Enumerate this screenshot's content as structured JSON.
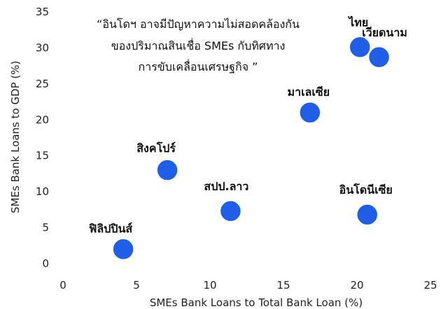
{
  "chart_data": {
    "type": "scatter",
    "xlabel": "SMEs Bank Loans to Total Bank Loan (%)",
    "ylabel": "SMEs Bank Loans to GDP (%)",
    "xlim": [
      0,
      25
    ],
    "ylim": [
      0,
      35
    ],
    "x_ticks": [
      0,
      5,
      10,
      15,
      20,
      25
    ],
    "y_ticks": [
      0,
      5,
      10,
      15,
      20,
      25,
      30,
      35
    ],
    "grid": false,
    "marker_color": "#1f5fe8",
    "points": [
      {
        "label": "ไทย",
        "x": 20.2,
        "y": 30.1
      },
      {
        "label": "เวียดนาม",
        "x": 21.5,
        "y": 28.7
      },
      {
        "label": "มาเลเซีย",
        "x": 16.8,
        "y": 21.0
      },
      {
        "label": "สิงคโปร์",
        "x": 7.1,
        "y": 13.0
      },
      {
        "label": "สปป.ลาว",
        "x": 11.4,
        "y": 7.3
      },
      {
        "label": "อินโดนีเซีย",
        "x": 20.7,
        "y": 6.8
      },
      {
        "label": "ฟิลิปปินส์",
        "x": 4.1,
        "y": 2.0
      }
    ],
    "annotation": [
      "“อินโดฯ อาจมีปัญหาความไม่สอดคล้องกัน",
      "ของปริมาณสินเชื่อ SMEs กับทิศทาง",
      "การขับเคลื่อนเศรษฐกิจ ”"
    ]
  }
}
